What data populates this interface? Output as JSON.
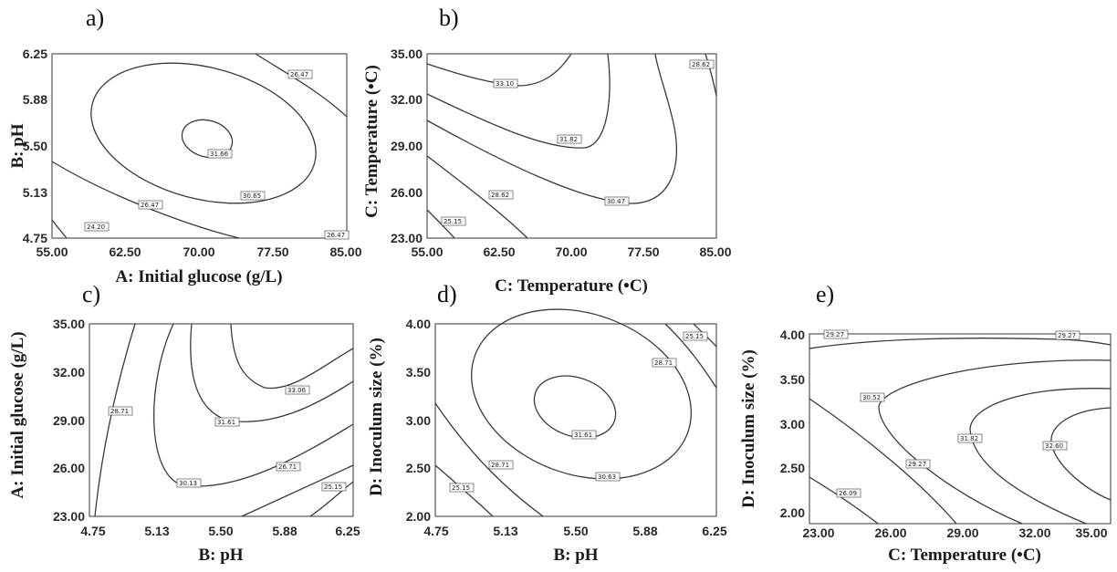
{
  "figure": {
    "panels": [
      {
        "id": "a",
        "label": "a)",
        "xlabel": "A: Initial glucose (g/L)",
        "ylabel": "B: pH",
        "xticks": [
          "55.00",
          "62.50",
          "70.00",
          "77.50",
          "85.00"
        ],
        "yticks": [
          "4.75",
          "5.13",
          "5.50",
          "5.88",
          "6.25"
        ],
        "contour_labels": [
          "26.47",
          "31.66",
          "30.65",
          "26.47",
          "24.20",
          "26.47"
        ]
      },
      {
        "id": "b",
        "label": "b)",
        "xlabel": "C: Temperature (•C)",
        "ylabel": "C: Temperature (•C)",
        "xticks": [
          "55.00",
          "62.50",
          "70.00",
          "77.50",
          "85.00"
        ],
        "yticks": [
          "23.00",
          "26.00",
          "29.00",
          "32.00",
          "35.00"
        ],
        "contour_labels": [
          "33.10",
          "31.82",
          "30.47",
          "28.62",
          "25.15",
          "28.62"
        ]
      },
      {
        "id": "c",
        "label": "c)",
        "xlabel": "B: pH",
        "ylabel": "A: Initial glucose (g/L)",
        "xticks": [
          "4.75",
          "5.13",
          "5.50",
          "5.88",
          "6.25"
        ],
        "yticks": [
          "23.00",
          "26.00",
          "29.00",
          "32.00",
          "35.00"
        ],
        "contour_labels": [
          "33.06",
          "31.61",
          "30.13",
          "28.71",
          "26.71",
          "25.15"
        ]
      },
      {
        "id": "d",
        "label": "d)",
        "xlabel": "B: pH",
        "ylabel": "D: Inoculum size (%)",
        "xticks": [
          "4.75",
          "5.13",
          "5.50",
          "5.88",
          "6.25"
        ],
        "yticks": [
          "2.00",
          "2.50",
          "3.00",
          "3.50",
          "4.00"
        ],
        "contour_labels": [
          "31.61",
          "30.63",
          "28.71",
          "28.71",
          "25.15",
          "25.15"
        ]
      },
      {
        "id": "e",
        "label": "e)",
        "xlabel": "C: Temperature (•C)",
        "ylabel": "D: Inoculum size (%)",
        "xticks": [
          "23.00",
          "26.00",
          "29.00",
          "32.00",
          "35.00"
        ],
        "yticks": [
          "2.00",
          "2.50",
          "3.00",
          "3.50",
          "4.00"
        ],
        "contour_labels": [
          "29.27",
          "30.52",
          "31.82",
          "32.60",
          "29.27",
          "26.09",
          "29.27"
        ]
      }
    ]
  },
  "chart_data": [
    {
      "type": "contour",
      "title": "a)",
      "xlabel": "A: Initial glucose (g/L)",
      "ylabel": "B: pH",
      "xlim": [
        55.0,
        85.0
      ],
      "ylim": [
        4.75,
        6.25
      ],
      "levels": [
        24.2,
        26.47,
        30.65,
        31.66
      ]
    },
    {
      "type": "contour",
      "title": "b)",
      "xlabel": "C: Temperature (•C)",
      "ylabel": "C: Temperature (•C)",
      "xlim": [
        55.0,
        85.0
      ],
      "ylim": [
        23.0,
        35.0
      ],
      "levels": [
        25.15,
        28.62,
        30.47,
        31.82,
        33.1
      ]
    },
    {
      "type": "contour",
      "title": "c)",
      "xlabel": "B: pH",
      "ylabel": "A: Initial glucose (g/L)",
      "xlim": [
        4.75,
        6.25
      ],
      "ylim": [
        23.0,
        35.0
      ],
      "levels": [
        25.15,
        26.71,
        28.71,
        30.13,
        31.61,
        33.06
      ]
    },
    {
      "type": "contour",
      "title": "d)",
      "xlabel": "B: pH",
      "ylabel": "D: Inoculum size (%)",
      "xlim": [
        4.75,
        6.25
      ],
      "ylim": [
        2.0,
        4.0
      ],
      "levels": [
        25.15,
        28.71,
        30.63,
        31.61
      ]
    },
    {
      "type": "contour",
      "title": "e)",
      "xlabel": "C: Temperature (•C)",
      "ylabel": "D: Inoculum size (%)",
      "xlim": [
        23.0,
        35.0
      ],
      "ylim": [
        2.0,
        4.0
      ],
      "levels": [
        26.09,
        29.27,
        30.52,
        31.82,
        32.6
      ]
    }
  ]
}
